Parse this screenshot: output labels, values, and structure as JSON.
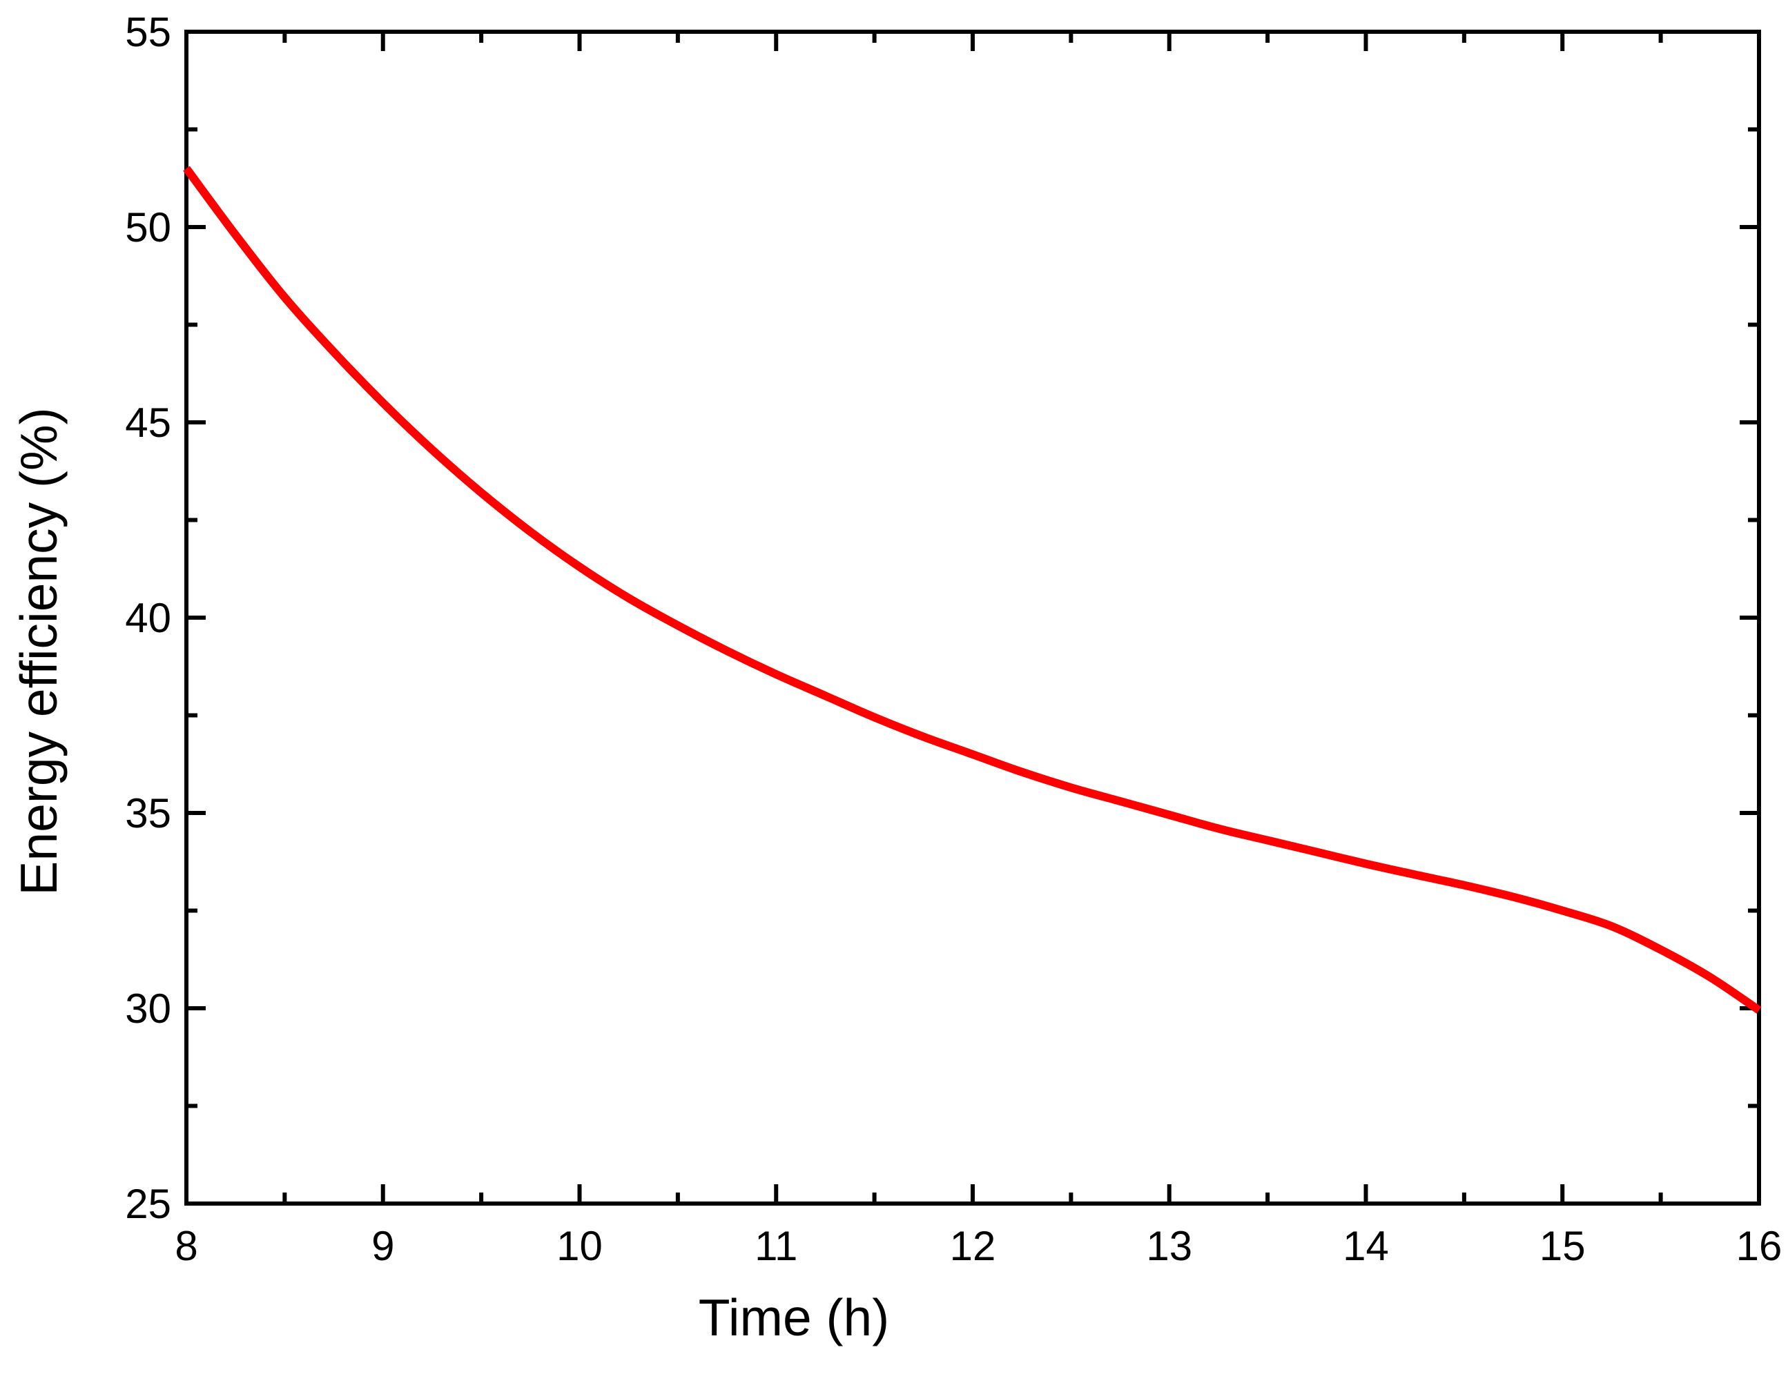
{
  "chart_data": {
    "type": "line",
    "title": "",
    "xlabel": "Time (h)",
    "ylabel": "Energy efficiency (%)",
    "xlim": [
      8,
      16
    ],
    "ylim": [
      25,
      55
    ],
    "x_ticks": [
      8,
      9,
      10,
      11,
      12,
      13,
      14,
      15,
      16
    ],
    "x_tick_labels": [
      "8",
      "9",
      "10",
      "11",
      "12",
      "13",
      "14",
      "15",
      "16"
    ],
    "y_ticks": [
      25,
      30,
      35,
      40,
      45,
      50,
      55
    ],
    "y_tick_labels": [
      "25",
      "30",
      "35",
      "40",
      "45",
      "50",
      "55"
    ],
    "x_minor_ticks": [
      8.5,
      9.5,
      10.5,
      11.5,
      12.5,
      13.5,
      14.5,
      15.5
    ],
    "y_minor_ticks": [
      27.5,
      32.5,
      37.5,
      42.5,
      47.5,
      52.5
    ],
    "grid": false,
    "series": [
      {
        "color": "#ff0000",
        "x": [
          8,
          8.25,
          8.5,
          8.75,
          9,
          9.25,
          9.5,
          9.75,
          10,
          10.25,
          10.5,
          10.75,
          11,
          11.25,
          11.5,
          11.75,
          12,
          12.25,
          12.5,
          12.75,
          13,
          13.25,
          13.5,
          13.75,
          14,
          14.25,
          14.5,
          14.75,
          15,
          15.25,
          15.5,
          15.75,
          16
        ],
        "y": [
          51.5,
          49.8,
          48.2,
          46.8,
          45.5,
          44.3,
          43.2,
          42.2,
          41.3,
          40.5,
          39.8,
          39.15,
          38.55,
          38.0,
          37.45,
          36.95,
          36.5,
          36.05,
          35.65,
          35.3,
          34.95,
          34.6,
          34.3,
          34.0,
          33.7,
          33.42,
          33.15,
          32.85,
          32.5,
          32.1,
          31.5,
          30.8,
          29.95
        ]
      }
    ]
  }
}
